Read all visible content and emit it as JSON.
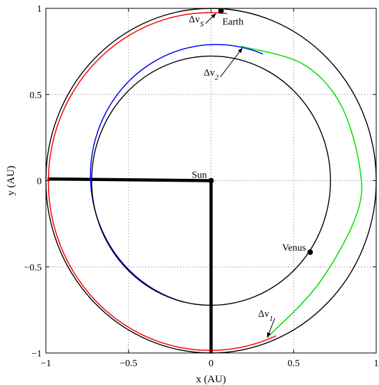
{
  "chart_data": {
    "type": "line",
    "xlabel": "x (AU)",
    "ylabel": "y (AU)",
    "xlim": [
      -1,
      1
    ],
    "ylim": [
      -1,
      1
    ],
    "grid": true,
    "xticks": [
      -1,
      -0.5,
      0,
      0.5,
      1
    ],
    "yticks": [
      -1,
      -0.5,
      0,
      0.5,
      1
    ],
    "xtick_labels": [
      "−1",
      "−0.5",
      "0",
      "0.5",
      "1"
    ],
    "ytick_labels": [
      "−1",
      "−0.5",
      "0",
      "0.5",
      "1"
    ],
    "colors": {
      "earth_orbit": "#000000",
      "venus_orbit": "#000000",
      "red_arc": "#ff0000",
      "green_arc": "#00e000",
      "blue_arc": "#0000ff",
      "sun_lines": "#000000"
    },
    "orbits": [
      {
        "center": [
          0,
          0
        ],
        "radius": 1.0
      },
      {
        "center": [
          0,
          0
        ],
        "radius": 0.723
      }
    ],
    "transfer_arcs": [
      {
        "color_key": "red_arc",
        "center": [
          -0.005,
          -0.005
        ],
        "radius": 0.98,
        "start_deg": 84,
        "end_deg": 294
      },
      {
        "color_key": "green_arc",
        "center": [
          -0.005,
          -0.005
        ],
        "radius": 0.98,
        "start_deg": 294,
        "end_deg": 0,
        "note": "outer ellipse right half"
      },
      {
        "color_key": "blue_arc",
        "center": [
          0.03,
          0.03
        ],
        "radius": 0.76,
        "start_deg": 68,
        "end_deg": 255
      }
    ],
    "green_arc_points": [
      [
        0.34,
        -0.91
      ],
      [
        0.65,
        -0.6
      ],
      [
        0.88,
        -0.2
      ],
      [
        0.9,
        0.08
      ],
      [
        0.78,
        0.45
      ],
      [
        0.55,
        0.68
      ],
      [
        0.18,
        0.78
      ]
    ],
    "sun_lines": [
      [
        [
          0,
          0
        ],
        [
          -0.99,
          0.01
        ]
      ],
      [
        [
          0,
          0
        ],
        [
          0,
          -1.0
        ]
      ]
    ],
    "points": [
      {
        "label": "Sun",
        "x": 0.0,
        "y": 0.0
      },
      {
        "label": "Earth",
        "x": 0.06,
        "y": 0.985
      },
      {
        "label": "Venus",
        "x": 0.6,
        "y": -0.415
      }
    ],
    "annotations": [
      {
        "text": "Δv",
        "sub": "S",
        "x": -0.135,
        "y": 0.92,
        "arrow_to": [
          0.03,
          0.97
        ]
      },
      {
        "text": "Δv",
        "sub": "2",
        "x": -0.045,
        "y": 0.61,
        "arrow_to": [
          0.19,
          0.77
        ]
      },
      {
        "text": "Δv",
        "sub": "1",
        "x": 0.285,
        "y": -0.79,
        "arrow_to": [
          0.34,
          -0.91
        ]
      }
    ]
  }
}
